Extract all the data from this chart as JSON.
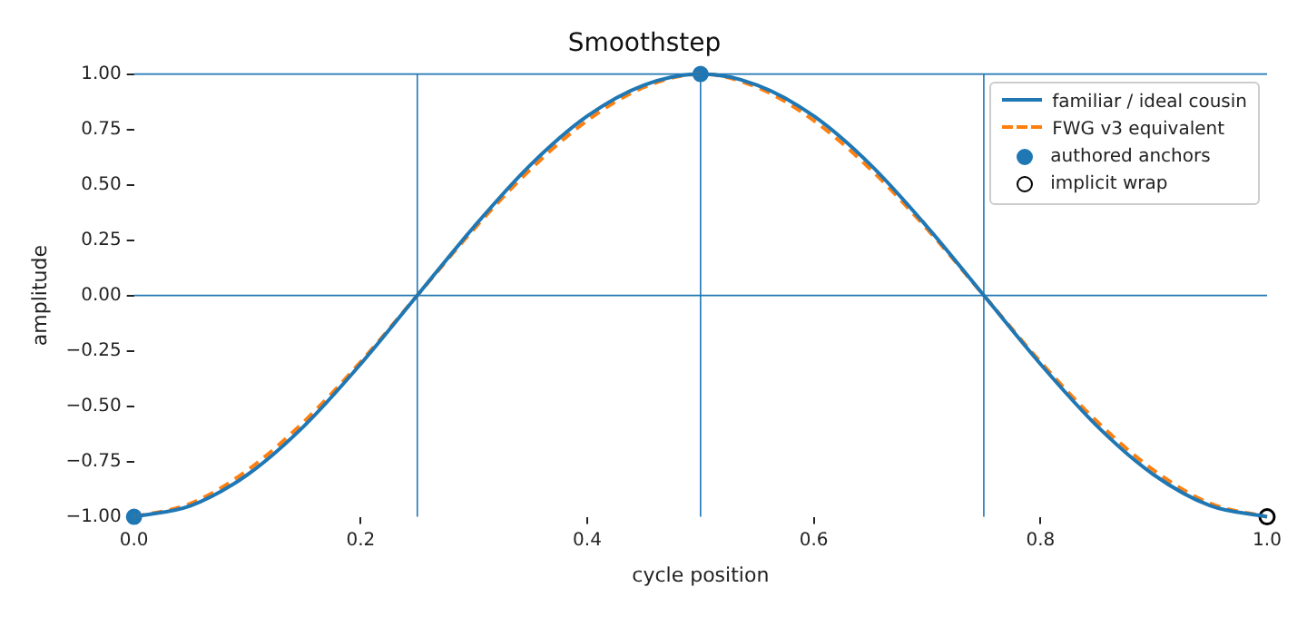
{
  "chart_data": {
    "type": "line",
    "title": "Smoothstep",
    "xlabel": "cycle position",
    "ylabel": "amplitude",
    "xlim": [
      0,
      1
    ],
    "xticks": [
      {
        "value": 0,
        "label": "0.0"
      },
      {
        "value": 0.2,
        "label": "0.2"
      },
      {
        "value": 0.4,
        "label": "0.4"
      },
      {
        "value": 0.6,
        "label": "0.6"
      },
      {
        "value": 0.8,
        "label": "0.8"
      },
      {
        "value": 1,
        "label": "1.0"
      }
    ],
    "ylim": [
      -1,
      1
    ],
    "yticks": [
      {
        "value": -1,
        "label": "−1.00"
      },
      {
        "value": -0.75,
        "label": "−0.75"
      },
      {
        "value": -0.5,
        "label": "−0.50"
      },
      {
        "value": -0.25,
        "label": "−0.25"
      },
      {
        "value": 0,
        "label": "0.00"
      },
      {
        "value": 0.25,
        "label": "0.25"
      },
      {
        "value": 0.5,
        "label": "0.50"
      },
      {
        "value": 0.75,
        "label": "0.75"
      },
      {
        "value": 1,
        "label": "1.00"
      }
    ],
    "x": [
      0,
      0.05,
      0.1,
      0.15,
      0.2,
      0.25,
      0.3,
      0.35,
      0.4,
      0.45,
      0.5,
      0.55,
      0.6,
      0.65,
      0.7,
      0.75,
      0.8,
      0.85,
      0.9,
      0.95,
      1
    ],
    "series": [
      {
        "name": "familiar / ideal cousin",
        "color": "#1f77b4",
        "line_style": "solid",
        "marker": "none",
        "values": [
          -1,
          -0.95,
          -0.81,
          -0.59,
          -0.31,
          0,
          0.31,
          0.59,
          0.81,
          0.95,
          1,
          0.95,
          0.81,
          0.59,
          0.31,
          0,
          -0.31,
          -0.59,
          -0.81,
          -0.95,
          -1
        ]
      },
      {
        "name": "FWG v3 equivalent",
        "color": "#ff7f0e",
        "line_style": "dashed",
        "marker": "none",
        "values": [
          -1,
          -0.94,
          -0.79,
          -0.57,
          -0.3,
          0,
          0.3,
          0.57,
          0.79,
          0.94,
          1,
          0.94,
          0.79,
          0.57,
          0.3,
          0,
          -0.3,
          -0.57,
          -0.79,
          -0.94,
          -1
        ]
      },
      {
        "name": "authored anchors",
        "type": "scatter",
        "color": "#1f77b4",
        "marker": "circle",
        "x": [
          0,
          0.5
        ],
        "values": [
          -1,
          1
        ]
      },
      {
        "name": "implicit wrap",
        "type": "scatter",
        "color": "#000000",
        "marker": "circle",
        "x": [
          1
        ],
        "values": [
          -1
        ]
      }
    ],
    "ref_lines": [
      {
        "axis": "y",
        "value": 1,
        "color": "#1f77b4"
      },
      {
        "axis": "y",
        "value": 0,
        "color": "#1f77b4"
      },
      {
        "axis": "x",
        "value": 0.25,
        "color": "#1f77b4"
      },
      {
        "axis": "x",
        "value": 0.5,
        "color": "#1f77b4"
      },
      {
        "axis": "x",
        "value": 0.75,
        "color": "#1f77b4"
      }
    ],
    "grid": false,
    "legend": "top right"
  }
}
